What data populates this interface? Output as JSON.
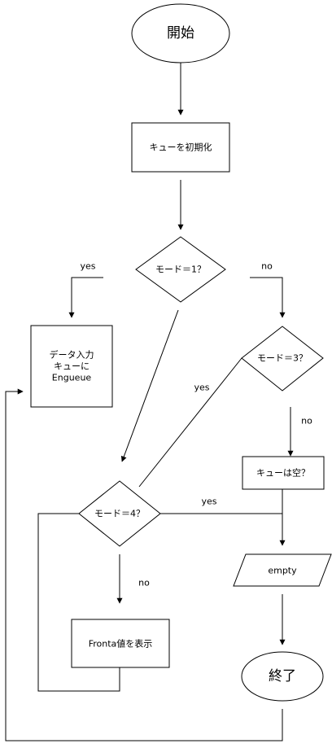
{
  "nodes": {
    "start": "開始",
    "init_queue": "キューを初期化",
    "mode1": "モード＝1？",
    "data_input": [
      "データ入力",
      "キューに",
      "Engueue"
    ],
    "mode3": "モード＝3？",
    "queue_empty": "キューは空？",
    "mode4": "モード＝4？",
    "empty_output": "empty",
    "show_front": "Fronta値を表示",
    "end": "終了"
  },
  "edge_labels": {
    "mode1_yes": "yes",
    "mode1_no": "no",
    "mode3_yes": "yes",
    "mode3_no": "no",
    "mode4_yes": "yes",
    "mode4_no": "no"
  },
  "colors": {
    "stroke": "#000000",
    "fill": "#ffffff"
  }
}
